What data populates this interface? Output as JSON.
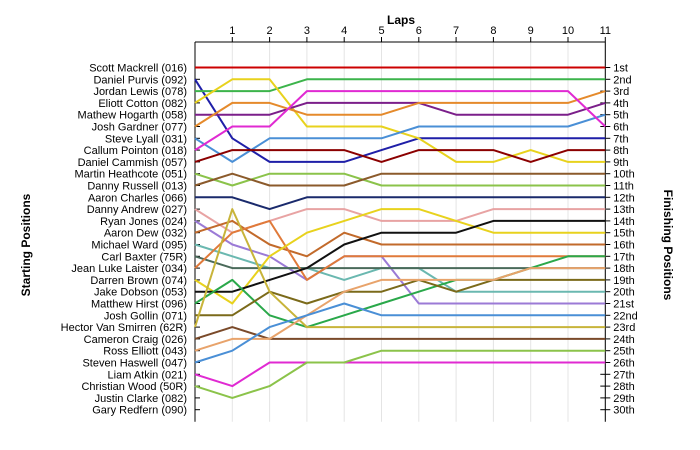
{
  "chart_data": {
    "type": "line",
    "title": "",
    "top_axis_label": "Laps",
    "left_axis_label": "Starting Positions",
    "right_axis_label": "Finishing Positions",
    "laps": [
      1,
      2,
      3,
      4,
      5,
      6,
      7,
      8,
      9,
      10,
      11
    ],
    "drivers": [
      "Scott Mackrell (016)",
      "Daniel Purvis (092)",
      "Jordan Lewis (078)",
      "Eliott Cotton (082)",
      "Mathew Hogarth (058)",
      "Josh Gardner (077)",
      "Steve Lyall (031)",
      "Callum Pointon (018)",
      "Daniel Cammish (057)",
      "Martin Heathcote (051)",
      "Danny Russell (013)",
      "Aaron Charles (066)",
      "Danny Andrew (027)",
      "Ryan Jones (024)",
      "Aaron Dew (032)",
      "Michael Ward (095)",
      "Carl Baxter (75R)",
      "Jean Luke Laister (034)",
      "Darren Brown (074)",
      "Jake Dobson (053)",
      "Matthew Hirst (096)",
      "Josh Gollin (071)",
      "Hector Van Smirren (62R)",
      "Cameron Craig (026)",
      "Ross Elliott (043)",
      "Steven Haswell (047)",
      "Liam Atkin (021)",
      "Christian Wood (50R)",
      "Justin Clarke (082)",
      "Gary Redfern (090)"
    ],
    "finishing_positions": [
      "1st",
      "2nd",
      "3rd",
      "4th",
      "5th",
      "6th",
      "7th",
      "8th",
      "9th",
      "10th",
      "11th",
      "12th",
      "13th",
      "14th",
      "15th",
      "16th",
      "17th",
      "18th",
      "19th",
      "20th",
      "21st",
      "22nd",
      "23rd",
      "24th",
      "25th",
      "26th",
      "27th",
      "28th",
      "29th",
      "30th"
    ],
    "series": [
      {
        "start": 1,
        "color": "#cc0000",
        "positions": [
          1,
          1,
          1,
          1,
          1,
          1,
          1,
          1,
          1,
          1,
          1
        ]
      },
      {
        "start": 2,
        "color": "#1f1fa8",
        "positions": [
          7,
          9,
          9,
          9,
          8,
          7,
          7,
          7,
          7,
          7,
          7
        ]
      },
      {
        "start": 3,
        "color": "#3cb44b",
        "positions": [
          3,
          3,
          2,
          2,
          2,
          2,
          2,
          2,
          2,
          2,
          2
        ]
      },
      {
        "start": 4,
        "color": "#e8d21d",
        "positions": [
          2,
          2,
          6,
          6,
          6,
          7,
          9,
          9,
          8,
          9,
          9
        ]
      },
      {
        "start": 5,
        "color": "#7b1f8a",
        "positions": [
          5,
          5,
          4,
          4,
          4,
          4,
          5,
          5,
          5,
          5,
          4
        ]
      },
      {
        "start": 6,
        "color": "#e58a2b",
        "positions": [
          4,
          4,
          5,
          5,
          5,
          4,
          4,
          4,
          4,
          4,
          3
        ]
      },
      {
        "start": 7,
        "color": "#4a8fd6",
        "positions": [
          9,
          7,
          7,
          7,
          7,
          6,
          6,
          6,
          6,
          6,
          5
        ]
      },
      {
        "start": 8,
        "color": "#e02ad2",
        "positions": [
          6,
          6,
          3,
          3,
          3,
          3,
          3,
          3,
          3,
          3,
          6
        ]
      },
      {
        "start": 9,
        "color": "#8b0000",
        "positions": [
          8,
          8,
          8,
          8,
          9,
          8,
          8,
          8,
          9,
          8,
          8
        ]
      },
      {
        "start": 10,
        "color": "#8bc34a",
        "positions": [
          11,
          10,
          10,
          10,
          11,
          11,
          11,
          11,
          11,
          11,
          11
        ]
      },
      {
        "start": 11,
        "color": "#8b5a2b",
        "positions": [
          10,
          11,
          11,
          11,
          10,
          10,
          10,
          10,
          10,
          10,
          10
        ]
      },
      {
        "start": 12,
        "color": "#1a2a6c",
        "positions": [
          12,
          13,
          12,
          12,
          12,
          12,
          12,
          12,
          12,
          12,
          12
        ]
      },
      {
        "start": 13,
        "color": "#e8a3a3",
        "positions": [
          15,
          14,
          13,
          13,
          14,
          14,
          14,
          13,
          13,
          13,
          13
        ]
      },
      {
        "start": 14,
        "color": "#9b7ad6",
        "positions": [
          16,
          17,
          19,
          17,
          17,
          21,
          21,
          21,
          21,
          21,
          21
        ]
      },
      {
        "start": 15,
        "color": "#c26a2b",
        "positions": [
          14,
          16,
          17,
          15,
          16,
          16,
          16,
          16,
          16,
          16,
          16
        ]
      },
      {
        "start": 16,
        "color": "#6ab8b0",
        "positions": [
          17,
          18,
          18,
          19,
          18,
          18,
          20,
          20,
          20,
          20,
          20
        ]
      },
      {
        "start": 17,
        "color": "#4a6a5a",
        "positions": [
          18,
          18,
          18,
          18,
          18,
          18,
          18,
          18,
          18,
          18,
          18
        ]
      },
      {
        "start": 18,
        "color": "#e07a3a",
        "positions": [
          15,
          14,
          19,
          17,
          17,
          17,
          17,
          17,
          17,
          17,
          17
        ]
      },
      {
        "start": 19,
        "color": "#e8d21d",
        "positions": [
          21,
          17,
          15,
          14,
          13,
          13,
          14,
          15,
          15,
          15,
          15
        ]
      },
      {
        "start": 20,
        "color": "#111111",
        "positions": [
          20,
          19,
          18,
          16,
          15,
          15,
          15,
          14,
          14,
          14,
          14
        ]
      },
      {
        "start": 21,
        "color": "#2aa84a",
        "positions": [
          19,
          22,
          23,
          22,
          21,
          20,
          19,
          19,
          18,
          17,
          17
        ]
      },
      {
        "start": 22,
        "color": "#7b6a1a",
        "positions": [
          22,
          20,
          21,
          20,
          20,
          19,
          20,
          19,
          19,
          19,
          19
        ]
      },
      {
        "start": 23,
        "color": "#c8b43a",
        "positions": [
          13,
          20,
          23,
          23,
          23,
          23,
          23,
          23,
          23,
          23,
          23
        ]
      },
      {
        "start": 24,
        "color": "#7a4a2a",
        "positions": [
          23,
          24,
          24,
          24,
          24,
          24,
          24,
          24,
          24,
          24,
          24
        ]
      },
      {
        "start": 25,
        "color": "#e8a36b",
        "positions": [
          24,
          24,
          22,
          20,
          19,
          19,
          19,
          19,
          18,
          18,
          18
        ]
      },
      {
        "start": 26,
        "color": "#4a8fd6",
        "positions": [
          25,
          23,
          22,
          21,
          22,
          22,
          22,
          22,
          22,
          22,
          22
        ]
      },
      {
        "start": 27,
        "color": "#e02ad2",
        "positions": [
          28,
          26,
          26,
          26,
          26,
          26,
          26,
          26,
          26,
          26,
          26
        ]
      },
      {
        "start": 28,
        "color": "#8bc34a",
        "positions": [
          29,
          28,
          26,
          26,
          25,
          25,
          25,
          25,
          25,
          25,
          25
        ]
      }
    ]
  }
}
